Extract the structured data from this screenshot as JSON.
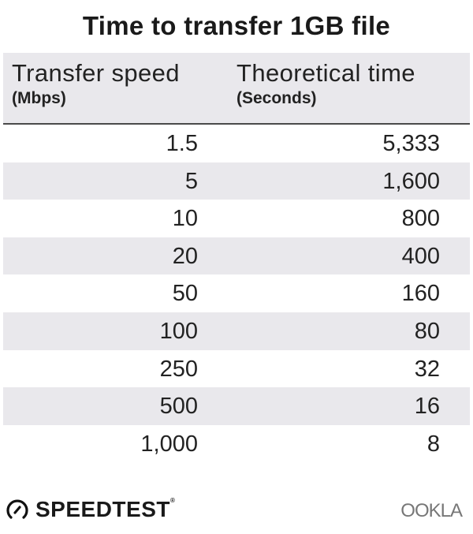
{
  "chart_data": {
    "type": "table",
    "title": "Time to transfer 1GB file",
    "columns": [
      {
        "label": "Transfer speed",
        "unit": "(Mbps)"
      },
      {
        "label": "Theoretical time",
        "unit": "(Seconds)"
      }
    ],
    "rows": [
      [
        "1.5",
        "5,333"
      ],
      [
        "5",
        "1,600"
      ],
      [
        "10",
        "800"
      ],
      [
        "20",
        "400"
      ],
      [
        "50",
        "160"
      ],
      [
        "100",
        "80"
      ],
      [
        "250",
        "32"
      ],
      [
        "500",
        "16"
      ],
      [
        "1,000",
        "8"
      ]
    ],
    "colors": {
      "header_bg": "#e9e8ec",
      "stripe_bg": "#e9e8ec",
      "text": "#222222"
    }
  },
  "footer": {
    "brand": "SPEEDTEST",
    "brand_mark": "®",
    "brand_icon": "speedometer-icon",
    "partner": "OOKLA"
  }
}
